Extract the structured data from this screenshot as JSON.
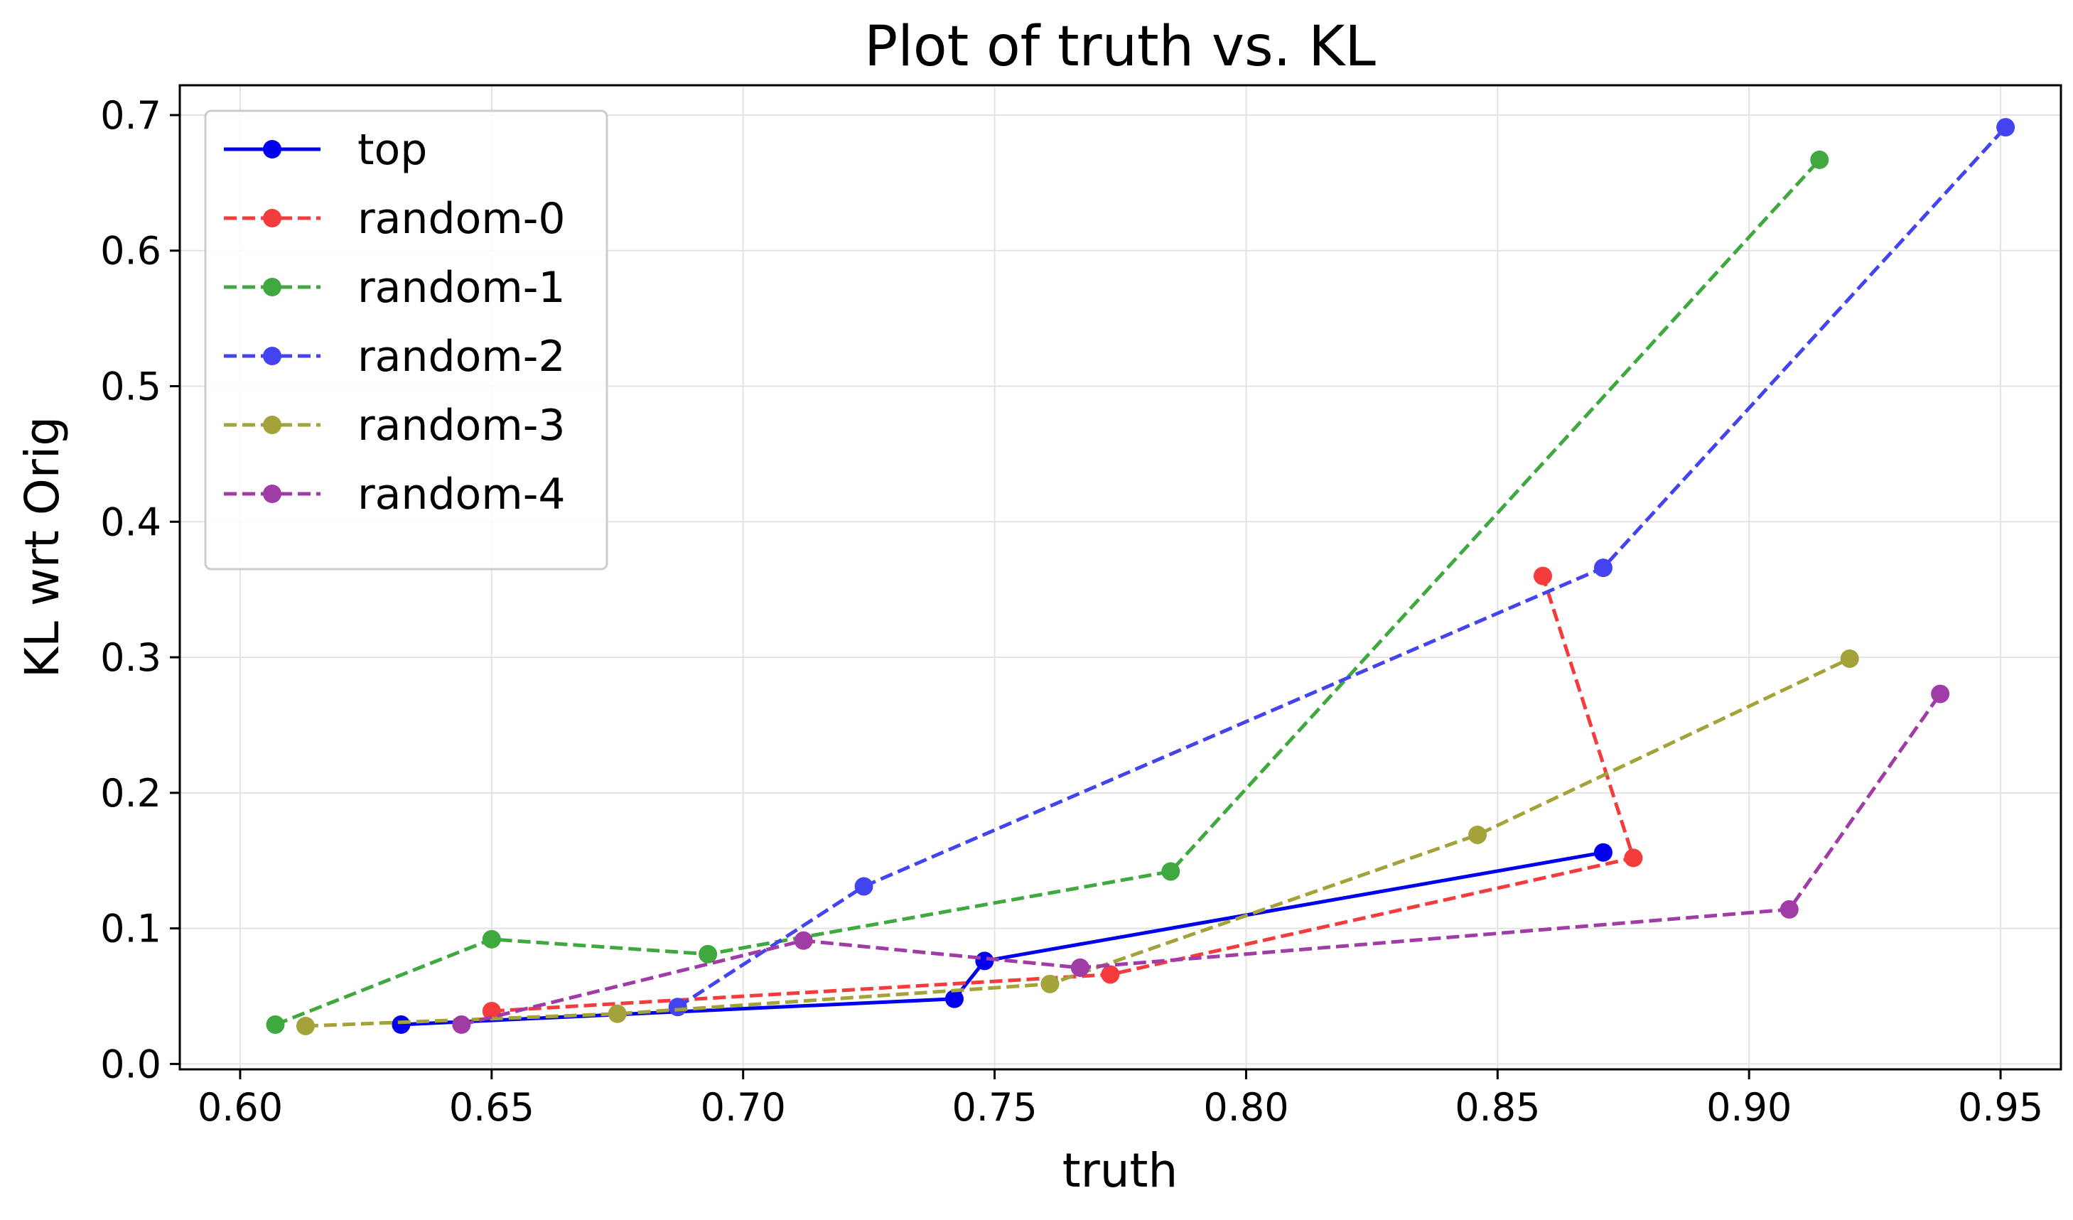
{
  "chart_data": {
    "type": "line",
    "title": "Plot of truth vs. KL",
    "xlabel": "truth",
    "ylabel": "KL wrt Orig",
    "xlim": [
      0.588,
      0.962
    ],
    "ylim": [
      -0.004,
      0.722
    ],
    "x_ticks": [
      0.6,
      0.65,
      0.7,
      0.75,
      0.8,
      0.85,
      0.9,
      0.95
    ],
    "x_tick_labels": [
      "0.60",
      "0.65",
      "0.70",
      "0.75",
      "0.80",
      "0.85",
      "0.90",
      "0.95"
    ],
    "y_ticks": [
      0.0,
      0.1,
      0.2,
      0.3,
      0.4,
      0.5,
      0.6,
      0.7
    ],
    "y_tick_labels": [
      "0.0",
      "0.1",
      "0.2",
      "0.3",
      "0.4",
      "0.5",
      "0.6",
      "0.7"
    ],
    "grid": true,
    "legend_position": "top-left",
    "series": [
      {
        "name": "top",
        "color": "#0000ee",
        "dashed": false,
        "points": [
          [
            0.632,
            0.029
          ],
          [
            0.742,
            0.048
          ],
          [
            0.748,
            0.076
          ],
          [
            0.871,
            0.156
          ]
        ]
      },
      {
        "name": "random-0",
        "color": "#f53b3b",
        "dashed": true,
        "points": [
          [
            0.65,
            0.039
          ],
          [
            0.773,
            0.066
          ],
          [
            0.877,
            0.152
          ],
          [
            0.859,
            0.36
          ]
        ]
      },
      {
        "name": "random-1",
        "color": "#3fa83f",
        "dashed": true,
        "points": [
          [
            0.607,
            0.029
          ],
          [
            0.65,
            0.092
          ],
          [
            0.693,
            0.081
          ],
          [
            0.785,
            0.142
          ],
          [
            0.914,
            0.667
          ]
        ]
      },
      {
        "name": "random-2",
        "color": "#4343f0",
        "dashed": true,
        "points": [
          [
            0.687,
            0.042
          ],
          [
            0.724,
            0.131
          ],
          [
            0.871,
            0.366
          ],
          [
            0.951,
            0.691
          ]
        ]
      },
      {
        "name": "random-3",
        "color": "#a3a33a",
        "dashed": true,
        "points": [
          [
            0.613,
            0.028
          ],
          [
            0.675,
            0.037
          ],
          [
            0.761,
            0.059
          ],
          [
            0.846,
            0.169
          ],
          [
            0.92,
            0.299
          ]
        ]
      },
      {
        "name": "random-4",
        "color": "#a03ca6",
        "dashed": true,
        "points": [
          [
            0.644,
            0.029
          ],
          [
            0.712,
            0.091
          ],
          [
            0.767,
            0.071
          ],
          [
            0.908,
            0.114
          ],
          [
            0.938,
            0.273
          ]
        ]
      }
    ]
  }
}
